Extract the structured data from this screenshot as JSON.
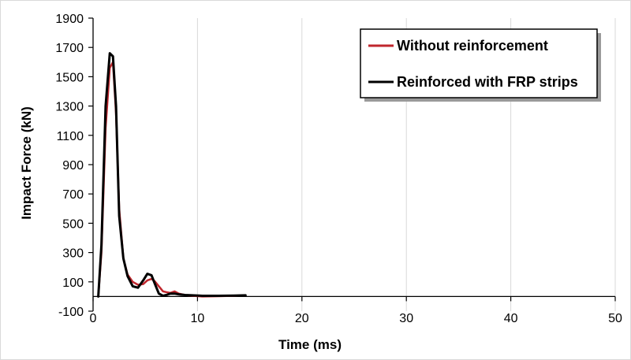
{
  "chart_data": {
    "type": "line",
    "title": "",
    "xlabel": "Time (ms)",
    "ylabel": "Impact Force (kN)",
    "xlim": [
      0,
      50
    ],
    "ylim": [
      -100,
      1900
    ],
    "xticks": [
      0,
      10,
      20,
      30,
      40,
      50
    ],
    "yticks": [
      -100,
      100,
      300,
      500,
      700,
      900,
      1100,
      1300,
      1500,
      1700,
      1900
    ],
    "xtick_labels": [
      "0",
      "10",
      "20",
      "30",
      "40",
      "50"
    ],
    "ytick_labels": [
      "-100",
      "100",
      "300",
      "500",
      "700",
      "900",
      "1100",
      "1300",
      "1500",
      "1700",
      "1900"
    ],
    "grid": "vertical",
    "legend_position": "top-right",
    "series": [
      {
        "name": "Without reinforcement",
        "color": "#c0262d",
        "x": [
          0.5,
          0.8,
          1.2,
          1.6,
          1.9,
          2.2,
          2.5,
          2.9,
          3.3,
          3.8,
          4.3,
          4.8,
          5.2,
          5.6,
          5.9,
          6.3,
          6.7,
          7.0,
          7.4,
          7.8,
          8.2,
          8.8,
          9.5,
          10.5,
          12.0,
          13.5,
          14.6
        ],
        "y": [
          0,
          300,
          1150,
          1560,
          1600,
          1250,
          600,
          260,
          150,
          100,
          80,
          85,
          110,
          120,
          105,
          70,
          35,
          30,
          25,
          35,
          20,
          10,
          5,
          0,
          2,
          5,
          8
        ]
      },
      {
        "name": "Reinforced with FRP strips",
        "color": "#000000",
        "x": [
          0.5,
          0.8,
          1.2,
          1.6,
          1.9,
          2.2,
          2.5,
          2.9,
          3.3,
          3.8,
          4.3,
          4.8,
          5.2,
          5.6,
          5.9,
          6.3,
          6.7,
          7.0,
          7.4,
          7.8,
          8.2,
          8.8,
          9.5,
          10.5,
          12.0,
          13.5,
          14.6
        ],
        "y": [
          0,
          350,
          1300,
          1660,
          1640,
          1300,
          550,
          260,
          140,
          70,
          60,
          110,
          155,
          145,
          90,
          20,
          5,
          10,
          20,
          20,
          15,
          10,
          8,
          5,
          5,
          6,
          8
        ]
      }
    ]
  }
}
